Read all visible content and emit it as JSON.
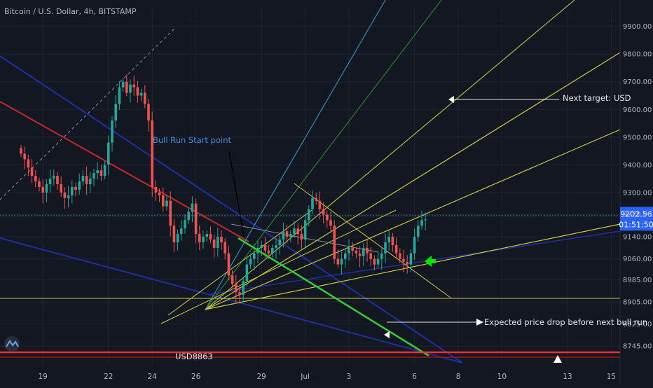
{
  "header": {
    "symbol": "Bitcoin / U.S. Dollar, 4h, BITSTAMP"
  },
  "colors": {
    "background": "#131722",
    "up": "#26a69a",
    "down": "#ef5350",
    "grid": "#1f2333",
    "axis_text": "#b2b5be",
    "price_tag": "#2962ff",
    "support": "#ff2f2f",
    "fan": "#d4d44a",
    "green_line": "#33cc33",
    "arrow_green": "#00e600",
    "blue_channel": "#1f2fa0"
  },
  "chart_data": {
    "type": "candlestick",
    "title": "Bitcoin / U.S. Dollar, 4h, BITSTAMP",
    "ylim": [
      8700,
      9970
    ],
    "y_ticks": [
      8745,
      8825,
      8905,
      8985,
      9060,
      9140,
      9220,
      9300,
      9400,
      9500,
      9600,
      9700,
      9800,
      9900
    ],
    "y_tick_labels": [
      "8745.00",
      "8825.00",
      "8905.00",
      "8985.00",
      "9060.00",
      "9140.00",
      "9220.00",
      "9300.00",
      "9400.00",
      "9500.00",
      "9600.00",
      "9700.00",
      "9800.00",
      "9900.00"
    ],
    "x_ticks": [
      {
        "label": "19",
        "bar": 6
      },
      {
        "label": "22",
        "bar": 24
      },
      {
        "label": "24",
        "bar": 36
      },
      {
        "label": "26",
        "bar": 48
      },
      {
        "label": "29",
        "bar": 66
      },
      {
        "label": "Jul",
        "bar": 78
      },
      {
        "label": "3",
        "bar": 90
      },
      {
        "label": "6",
        "bar": 108
      },
      {
        "label": "8",
        "bar": 120
      },
      {
        "label": "10",
        "bar": 132
      },
      {
        "label": "13",
        "bar": 150
      },
      {
        "label": "15",
        "bar": 162
      }
    ],
    "bar_count": 112,
    "last_price": 9202.56,
    "last_price_label": "9202.56",
    "countdown": "01:51:50",
    "price_line_label": "9220.00",
    "closes": [
      9440,
      9420,
      9390,
      9360,
      9340,
      9320,
      9300,
      9330,
      9350,
      9360,
      9330,
      9300,
      9280,
      9290,
      9320,
      9310,
      9340,
      9360,
      9330,
      9350,
      9370,
      9380,
      9360,
      9400,
      9480,
      9560,
      9620,
      9680,
      9700,
      9660,
      9690,
      9680,
      9650,
      9660,
      9620,
      9560,
      9320,
      9300,
      9290,
      9250,
      9270,
      9180,
      9120,
      9150,
      9170,
      9200,
      9230,
      9260,
      9150,
      9120,
      9140,
      9150,
      9130,
      9100,
      9140,
      9120,
      9080,
      9000,
      8970,
      8940,
      8930,
      8980,
      9040,
      9060,
      9080,
      9100,
      9110,
      9090,
      9080,
      9100,
      9110,
      9130,
      9160,
      9140,
      9150,
      9170,
      9150,
      9130,
      9200,
      9240,
      9280,
      9270,
      9240,
      9220,
      9200,
      9180,
      9060,
      9040,
      9060,
      9080,
      9100,
      9090,
      9080,
      9070,
      9100,
      9080,
      9060,
      9040,
      9060,
      9080,
      9120,
      9140,
      9110,
      9080,
      9060,
      9050,
      9040,
      9080,
      9140,
      9180,
      9200,
      9202.56
    ]
  },
  "annotations": {
    "bull_run_label": "Bull Run Start point",
    "next_target": "Next target: USD",
    "expected_drop": "Expected price drop before next bull run",
    "usd_level": "USD8863"
  }
}
